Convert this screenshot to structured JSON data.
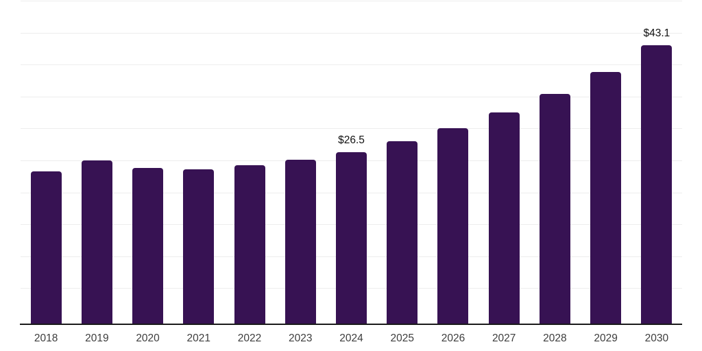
{
  "chart_data": {
    "type": "bar",
    "title": "",
    "xlabel": "",
    "ylabel": "",
    "categories": [
      "2018",
      "2019",
      "2020",
      "2021",
      "2022",
      "2023",
      "2024",
      "2025",
      "2026",
      "2027",
      "2028",
      "2029",
      "2030"
    ],
    "values": [
      23.6,
      25.3,
      24.1,
      23.9,
      24.5,
      25.4,
      26.5,
      28.2,
      30.3,
      32.7,
      35.6,
      39.0,
      43.1
    ],
    "data_labels": [
      "",
      "",
      "",
      "",
      "",
      "",
      "$26.5",
      "",
      "",
      "",
      "",
      "",
      "$43.1"
    ],
    "value_prefix": "$",
    "ylim": [
      0,
      50
    ],
    "gridline_step": 5,
    "grid": "horizontal",
    "legend": "none",
    "colors": {
      "bar": "#371253",
      "axis": "#1a1a1a",
      "gridline": "#ededed",
      "tick_label": "#3d3d3d",
      "data_label": "#111111",
      "background": "#ffffff"
    }
  }
}
